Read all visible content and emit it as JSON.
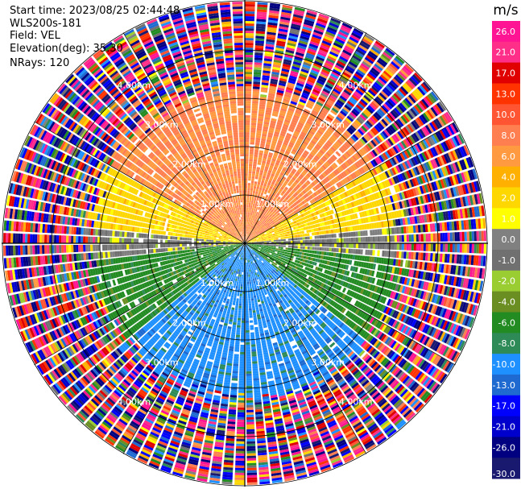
{
  "header": {
    "start_time": "Start time: 2023/08/25 02:44:48",
    "station": "WLS200s-181",
    "field": "Field: VEL",
    "elevation": "Elevation(deg): 35.30",
    "nrays": "NRays: 120"
  },
  "colorbar": {
    "unit": "m/s",
    "ticks": [
      "26.0",
      "21.0",
      "17.0",
      "13.0",
      "10.0",
      "8.0",
      "6.0",
      "4.0",
      "2.0",
      "1.0",
      "0.0",
      "-1.0",
      "-2.0",
      "-4.0",
      "-6.0",
      "-8.0",
      "-10.0",
      "-13.0",
      "-17.0",
      "-21.0",
      "-26.0",
      "-30.0"
    ],
    "colors": [
      "#ff1493",
      "#ff2e88",
      "#e00000",
      "#ff3300",
      "#ff5533",
      "#ff7f50",
      "#ff9a40",
      "#ffb000",
      "#ffd700",
      "#ffff00",
      "#808080",
      "#707070",
      "#9acd32",
      "#6b8e23",
      "#228b22",
      "#2e8b57",
      "#1e90ff",
      "#1e6ad0",
      "#0000ff",
      "#0000cd",
      "#000080",
      "#191970"
    ]
  },
  "chart_data": {
    "type": "ppi",
    "field": "VEL",
    "unit": "m/s",
    "nrays": 120,
    "range_rings_km": [
      1.0,
      2.0,
      3.0,
      4.0
    ],
    "ring_labels": [
      "1.00km",
      "2.00km",
      "3.00km",
      "4.00km"
    ],
    "clim": [
      -30,
      30
    ],
    "sector_pattern": [
      {
        "azimuth_from": 300,
        "azimuth_to": 60,
        "velocity": 8.0
      },
      {
        "azimuth_from": 60,
        "azimuth_to": 85,
        "velocity": 3.0
      },
      {
        "azimuth_from": 85,
        "azimuth_to": 95,
        "velocity": 0.0
      },
      {
        "azimuth_from": 95,
        "azimuth_to": 130,
        "velocity": -5.0
      },
      {
        "azimuth_from": 130,
        "azimuth_to": 230,
        "velocity": -9.0
      },
      {
        "azimuth_from": 230,
        "azimuth_to": 265,
        "velocity": -5.0
      },
      {
        "azimuth_from": 265,
        "azimuth_to": 275,
        "velocity": 0.0
      },
      {
        "azimuth_from": 275,
        "azimuth_to": 300,
        "velocity": 3.0
      }
    ],
    "noise_beyond_km": 3.0
  }
}
